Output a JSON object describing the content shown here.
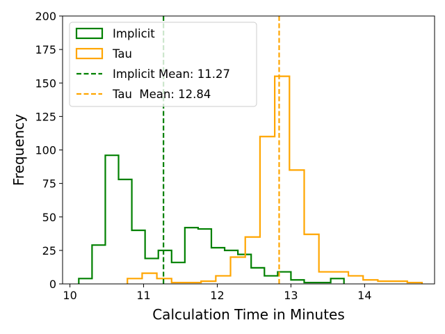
{
  "chart_data": {
    "type": "histogram",
    "title": "",
    "xlabel": "Calculation Time in Minutes",
    "ylabel": "Frequency",
    "xlim": [
      9.9,
      14.95
    ],
    "ylim": [
      0,
      200
    ],
    "x_ticks": [
      10,
      11,
      12,
      13,
      14
    ],
    "y_ticks": [
      0,
      25,
      50,
      75,
      100,
      125,
      150,
      175,
      200
    ],
    "grid": false,
    "legend_position": "upper-left",
    "series": [
      {
        "name": "Implicit",
        "color": "#008000",
        "style": "step",
        "bin_edges": [
          10.12,
          10.3,
          10.48,
          10.66,
          10.84,
          11.02,
          11.2,
          11.38,
          11.56,
          11.74,
          11.92,
          12.1,
          12.28,
          12.46,
          12.64,
          12.82,
          13.0,
          13.18,
          13.36,
          13.54,
          13.72
        ],
        "counts": [
          4,
          29,
          96,
          78,
          40,
          19,
          25,
          16,
          42,
          41,
          27,
          25,
          22,
          12,
          6,
          9,
          3,
          1,
          1,
          4
        ]
      },
      {
        "name": "Tau",
        "color": "#FFA500",
        "style": "step",
        "bin_edges": [
          10.78,
          10.98,
          11.18,
          11.38,
          11.58,
          11.78,
          11.98,
          12.18,
          12.38,
          12.58,
          12.78,
          12.98,
          13.18,
          13.38,
          13.58,
          13.78,
          13.98,
          14.18,
          14.38,
          14.58,
          14.78
        ],
        "counts": [
          4,
          8,
          4,
          1,
          1,
          2,
          6,
          20,
          35,
          110,
          155,
          85,
          37,
          9,
          9,
          6,
          3,
          2,
          2,
          1
        ]
      }
    ],
    "reference_lines": [
      {
        "name": "Implicit Mean: 11.27",
        "x": 11.27,
        "color": "#008000",
        "style": "dashed"
      },
      {
        "name": "Tau  Mean: 12.84",
        "x": 12.84,
        "color": "#FFA500",
        "style": "dashed"
      }
    ]
  }
}
